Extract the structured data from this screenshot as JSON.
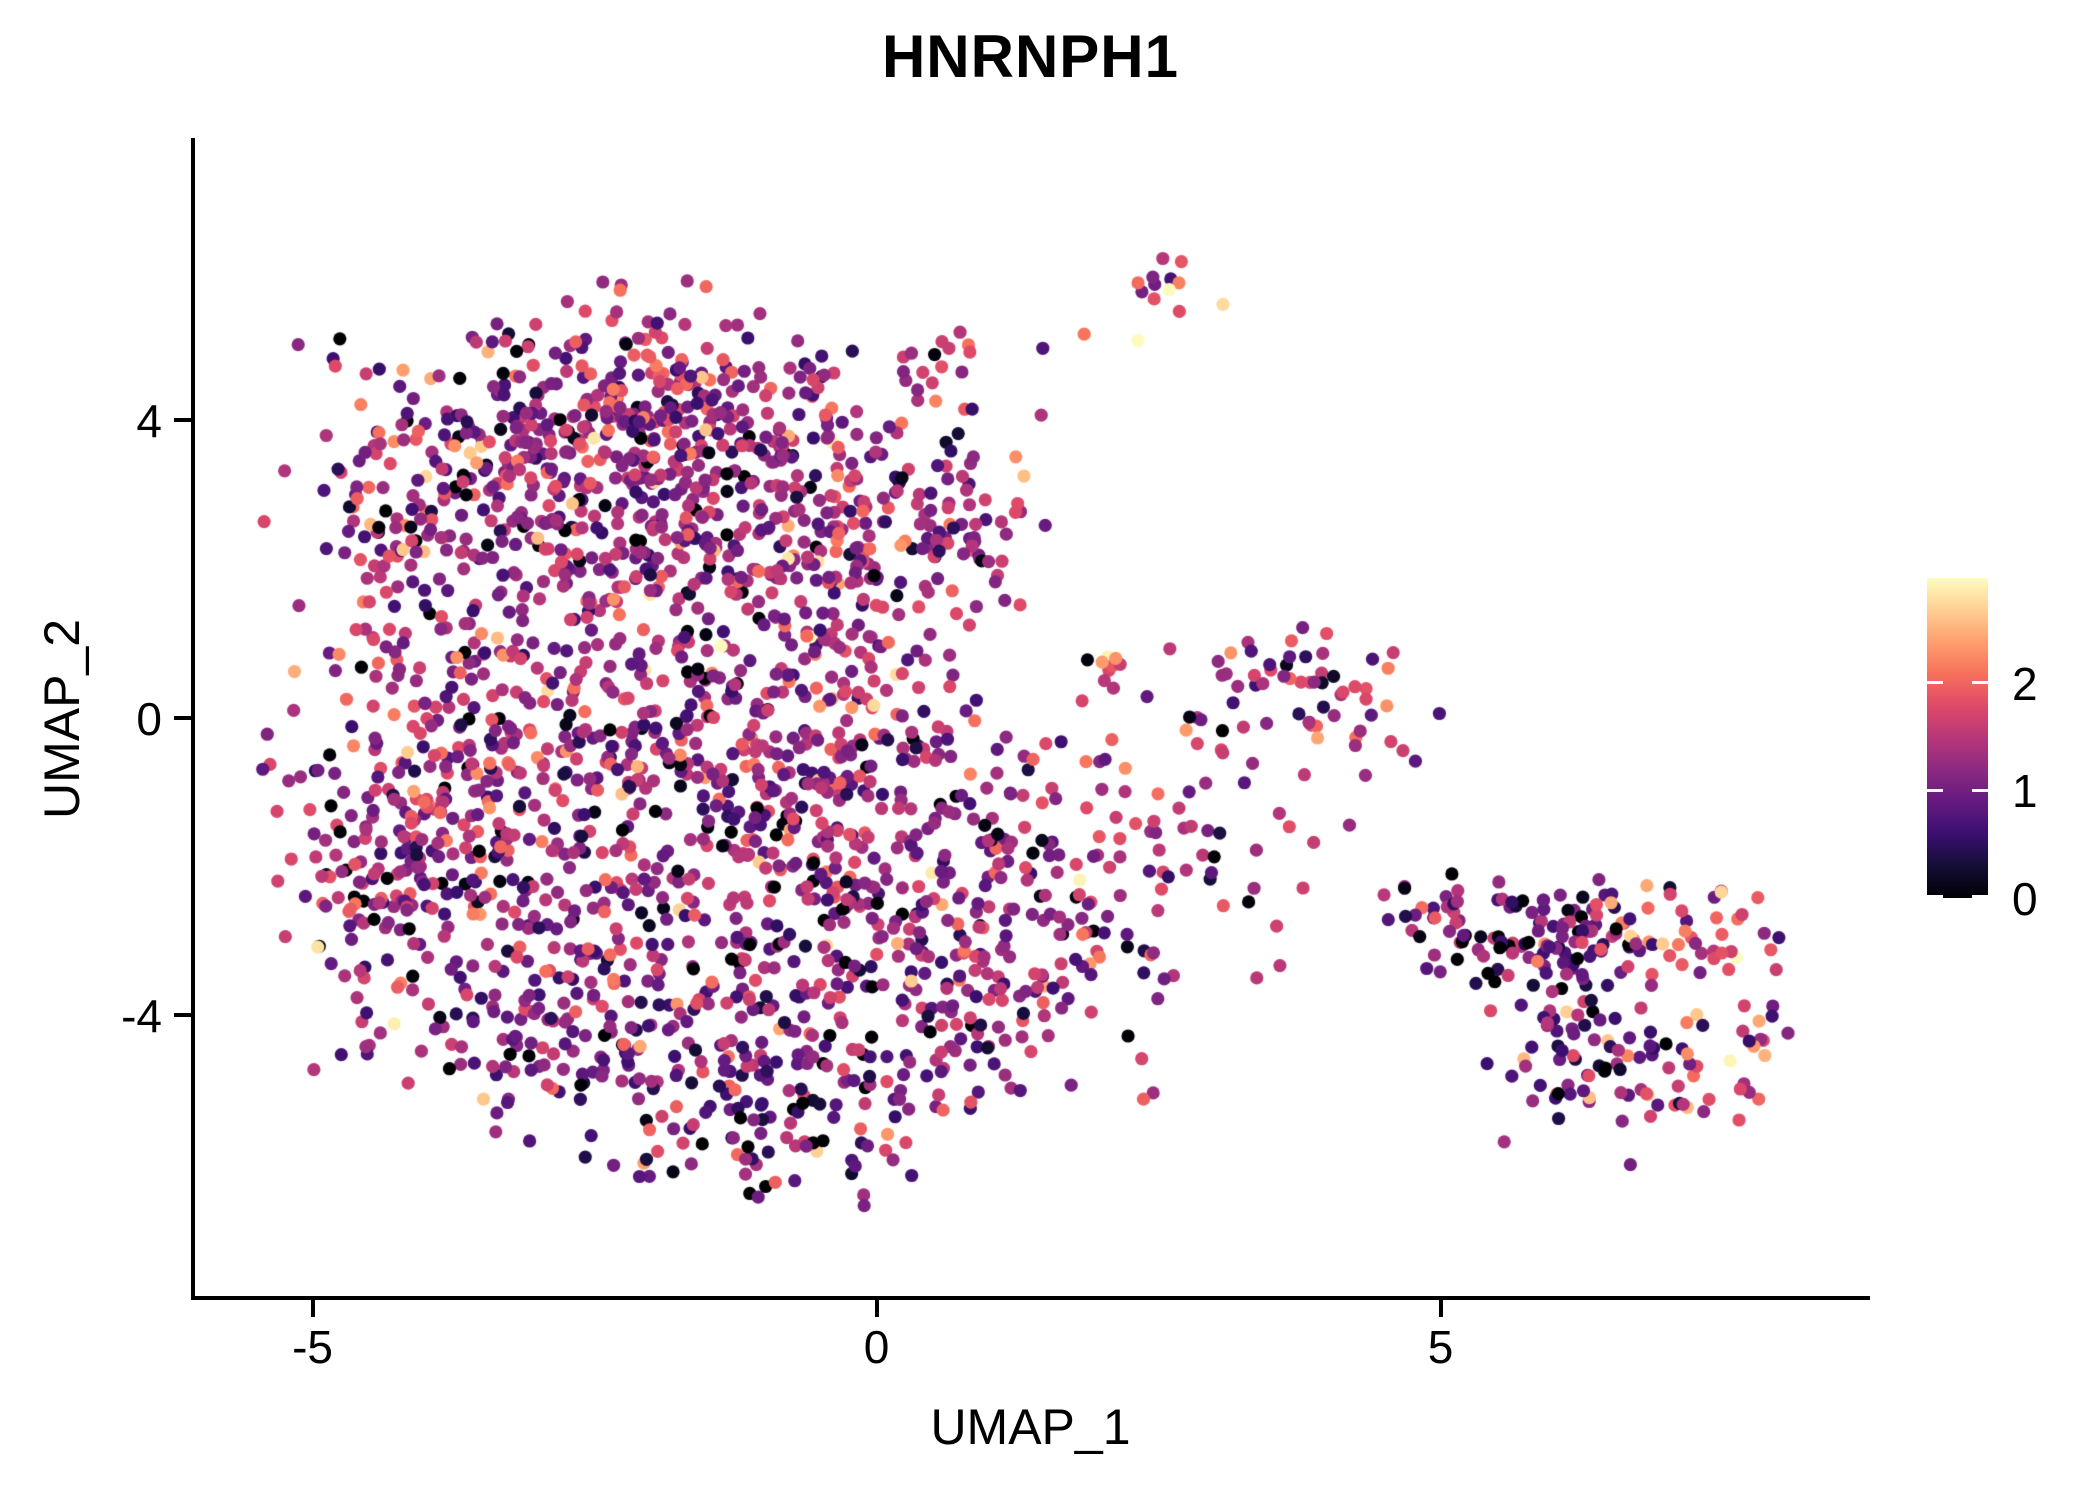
{
  "title": "HNRNPH1",
  "chart_data": {
    "type": "scatter",
    "title": "HNRNPH1",
    "xlabel": "UMAP_1",
    "ylabel": "UMAP_2",
    "x_ticks": [
      -5,
      0,
      5
    ],
    "y_ticks": [
      -4,
      0,
      4
    ],
    "xlim": [
      -6.06,
      8.79
    ],
    "ylim": [
      -7.8,
      7.77
    ],
    "grid": false,
    "legend": {
      "type": "colorbar",
      "position": "right",
      "ticks": [
        0,
        1,
        2
      ],
      "vmin": 0,
      "vmax": 2.97
    },
    "colormap": {
      "name": "magma",
      "stops": [
        "#000004",
        "#140E36",
        "#3B0F70",
        "#641A80",
        "#8C2981",
        "#B73779",
        "#DE4968",
        "#F7705C",
        "#FE9F6D",
        "#FECF92",
        "#FCFDBF"
      ]
    },
    "point_radius_px": 6.6,
    "seed": 20240,
    "expression_model": {
      "base_min": 0.2,
      "tri_scale": 1.08,
      "zero_frac": 0.08,
      "zero_max": 0.12,
      "high_frac": 0.035,
      "high_min": 2.15,
      "high_span": 0.8,
      "jitter": 0.2,
      "vmax": 2.96
    },
    "clusters": [
      {
        "name": "upper-blob-top",
        "cx": -2.09,
        "cy": 4.27,
        "sx": 1.02,
        "sy": 0.65,
        "n": 230,
        "bias": 0
      },
      {
        "name": "upper-blob-left",
        "cx": -2.93,
        "cy": 3.27,
        "sx": 0.84,
        "sy": 0.74,
        "n": 160,
        "bias": 0
      },
      {
        "name": "upper-blob-right",
        "cx": -1.29,
        "cy": 3.2,
        "sx": 0.89,
        "sy": 0.74,
        "n": 170,
        "bias": 0
      },
      {
        "name": "upper-left-wing",
        "cx": -3.95,
        "cy": 2.8,
        "sx": 0.49,
        "sy": 0.67,
        "n": 65,
        "bias": 0
      },
      {
        "name": "upper-lower-right",
        "cx": -0.27,
        "cy": 2.33,
        "sx": 0.66,
        "sy": 0.67,
        "n": 100,
        "bias": 0
      },
      {
        "name": "upper-right-ext",
        "cx": 0.74,
        "cy": 2.53,
        "sx": 0.4,
        "sy": 0.6,
        "n": 45,
        "bias": 0
      },
      {
        "name": "upper-bottom-fringe",
        "cx": -2.0,
        "cy": 2.19,
        "sx": 1.15,
        "sy": 0.47,
        "n": 100,
        "bias": 0
      },
      {
        "name": "waist-left",
        "cx": -3.95,
        "cy": 1.45,
        "sx": 0.49,
        "sy": 0.6,
        "n": 40,
        "bias": 0
      },
      {
        "name": "waist-mid",
        "cx": -2.09,
        "cy": 0.91,
        "sx": 1.06,
        "sy": 0.67,
        "n": 65,
        "bias": 0
      },
      {
        "name": "waist-right",
        "cx": -0.5,
        "cy": 0.91,
        "sx": 0.62,
        "sy": 0.6,
        "n": 50,
        "bias": 0
      },
      {
        "name": "lower-top-left",
        "cx": -3.69,
        "cy": -0.3,
        "sx": 0.71,
        "sy": 0.81,
        "n": 120,
        "bias": 0
      },
      {
        "name": "lower-top-mid",
        "cx": -2.09,
        "cy": -0.56,
        "sx": 0.98,
        "sy": 0.81,
        "n": 160,
        "bias": 0
      },
      {
        "name": "lower-top-right",
        "cx": -0.32,
        "cy": -0.56,
        "sx": 0.8,
        "sy": 0.81,
        "n": 140,
        "bias": 0
      },
      {
        "name": "lower-mid-left",
        "cx": -3.95,
        "cy": -2.18,
        "sx": 0.66,
        "sy": 1.01,
        "n": 150,
        "bias": 0
      },
      {
        "name": "lower-mid-center",
        "cx": -2.09,
        "cy": -2.45,
        "sx": 0.98,
        "sy": 1.08,
        "n": 190,
        "bias": 0
      },
      {
        "name": "lower-mid-right",
        "cx": -0.14,
        "cy": -2.45,
        "sx": 0.8,
        "sy": 1.01,
        "n": 150,
        "bias": 0
      },
      {
        "name": "lower-right-lobe",
        "cx": 1.63,
        "cy": -2.45,
        "sx": 0.71,
        "sy": 1.08,
        "n": 140,
        "bias": 0
      },
      {
        "name": "lower-bottom-left",
        "cx": -2.8,
        "cy": -4.19,
        "sx": 0.71,
        "sy": 0.74,
        "n": 100,
        "bias": -0.2
      },
      {
        "name": "lower-bottom-mid",
        "cx": -1.29,
        "cy": -4.6,
        "sx": 0.8,
        "sy": 0.81,
        "n": 120,
        "bias": -0.2
      },
      {
        "name": "lower-bottom-right",
        "cx": 0.48,
        "cy": -3.92,
        "sx": 0.71,
        "sy": 0.81,
        "n": 100,
        "bias": -0.15
      },
      {
        "name": "lower-bottom-tip",
        "cx": -1.03,
        "cy": -5.67,
        "sx": 0.49,
        "sy": 0.4,
        "n": 40,
        "bias": -0.25
      },
      {
        "name": "lower-left-edge",
        "cx": -4.57,
        "cy": -2.45,
        "sx": 0.27,
        "sy": 0.6,
        "n": 28,
        "bias": -0.1
      },
      {
        "name": "trail-clump",
        "cx": 0.55,
        "cy": 4.84,
        "sx": 0.2,
        "sy": 0.19,
        "n": 12,
        "bias": 0.1
      },
      {
        "name": "trail-dots",
        "cx": 0.04,
        "cy": 4.01,
        "sx": 0.25,
        "sy": 0.38,
        "n": 8,
        "bias": 0.1
      },
      {
        "name": "trail-upper-dots",
        "cx": 1.45,
        "cy": 5.22,
        "sx": 0.31,
        "sy": 0.27,
        "n": 3,
        "bias": 0.2
      },
      {
        "name": "top-small-cluster",
        "cx": 2.61,
        "cy": 5.75,
        "sx": 0.23,
        "sy": 0.3,
        "n": 13,
        "bias": 0.35
      },
      {
        "name": "bridge-dots",
        "cx": 2.92,
        "cy": -0.03,
        "sx": 0.4,
        "sy": 0.47,
        "n": 14,
        "bias": 0
      },
      {
        "name": "mid-right-cluster",
        "cx": 3.98,
        "cy": 0.17,
        "sx": 0.43,
        "sy": 0.51,
        "n": 48,
        "bias": 0.1
      },
      {
        "name": "mid-right-fringe",
        "cx": 3.49,
        "cy": 0.78,
        "sx": 0.22,
        "sy": 0.24,
        "n": 6,
        "bias": 0.1
      },
      {
        "name": "bridge-lower-dots",
        "cx": 3.49,
        "cy": -1.71,
        "sx": 0.4,
        "sy": 0.34,
        "n": 10,
        "bias": 0
      },
      {
        "name": "right-connector",
        "cx": 4.82,
        "cy": -2.51,
        "sx": 0.22,
        "sy": 0.24,
        "n": 8,
        "bias": 0
      },
      {
        "name": "right-band-left",
        "cx": 5.44,
        "cy": -2.78,
        "sx": 0.49,
        "sy": 0.34,
        "n": 55,
        "bias": -0.25
      },
      {
        "name": "right-band-mid",
        "cx": 6.24,
        "cy": -2.92,
        "sx": 0.4,
        "sy": 0.38,
        "n": 48,
        "bias": -0.25
      },
      {
        "name": "right-band-end-warm",
        "cx": 7.31,
        "cy": -2.85,
        "sx": 0.4,
        "sy": 0.34,
        "n": 38,
        "bias": 0.55
      },
      {
        "name": "right-diagonal",
        "cx": 6.06,
        "cy": -3.79,
        "sx": 0.31,
        "sy": 0.54,
        "n": 45,
        "bias": -0.25
      },
      {
        "name": "right-hook-mid",
        "cx": 6.42,
        "cy": -4.6,
        "sx": 0.36,
        "sy": 0.4,
        "n": 40,
        "bias": -0.2
      },
      {
        "name": "right-hook-warm",
        "cx": 7.31,
        "cy": -4.87,
        "sx": 0.4,
        "sy": 0.34,
        "n": 32,
        "bias": 0.45
      },
      {
        "name": "right-hook-tip",
        "cx": 7.84,
        "cy": -4.33,
        "sx": 0.13,
        "sy": 0.34,
        "n": 8,
        "bias": 0.3
      }
    ],
    "extra_points": [
      {
        "x": 2.05,
        "y": 0.82,
        "v": 2.9
      },
      {
        "x": 2.12,
        "y": 0.8,
        "v": 2.3
      },
      {
        "x": 2.0,
        "y": 0.75,
        "v": 2.35
      },
      {
        "x": 2.09,
        "y": 0.7,
        "v": 1.9
      },
      {
        "x": 1.87,
        "y": 0.78,
        "v": 0.05
      },
      {
        "x": 2.16,
        "y": 0.72,
        "v": 1.6
      },
      {
        "x": 2.06,
        "y": 0.64,
        "v": 1.75
      },
      {
        "x": 2.02,
        "y": 0.5,
        "v": 1.5
      },
      {
        "x": 2.1,
        "y": 0.4,
        "v": 1.45
      },
      {
        "x": 3.07,
        "y": -0.47,
        "v": 1.6
      },
      {
        "x": 4.56,
        "y": -0.32,
        "v": 1.7
      }
    ]
  }
}
